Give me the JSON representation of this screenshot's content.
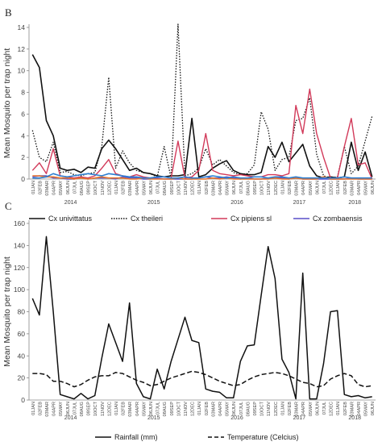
{
  "panels": [
    {
      "letter": "B"
    },
    {
      "letter": "C"
    }
  ],
  "colors": {
    "cx_univittatus": "#111111",
    "cx_theileri": "#111111",
    "cx_pipiens": "#d23a5a",
    "cx_zombaensis": "#5a4fc8",
    "orange_series": "#e8742a",
    "blue_series": "#2e7fd1",
    "rainfall": "#111111",
    "temperature": "#111111",
    "axis": "#888888"
  },
  "chart_data": [
    {
      "type": "line",
      "ylabel": "Mean Mosquito per trap night",
      "xlabel": "",
      "ylim": [
        0,
        14
      ],
      "yticks": [
        0,
        2,
        4,
        6,
        8,
        10,
        12,
        14
      ],
      "grid": false,
      "legend_position": "bottom",
      "categories": [
        "01JAN",
        "02FEB",
        "03MAR",
        "04APR",
        "05MAY",
        "06JUN",
        "07JUL",
        "08AUG",
        "09SEP",
        "10OCT",
        "11NOV",
        "12DEC",
        "01JAN",
        "02FEB",
        "03MAR",
        "04APR",
        "05MAY",
        "06JUN",
        "07JUL",
        "08AUG",
        "09SEP",
        "10OCT",
        "11NOV",
        "12DEC",
        "01JAN",
        "02FEB",
        "03MAR",
        "04APR",
        "05MAY",
        "06JUN",
        "07JUL",
        "08AUG",
        "09SEP",
        "10OCT",
        "11NOV",
        "12DEC",
        "01JAN",
        "02FEB",
        "03MAR",
        "04APR",
        "05MAY",
        "06JUN",
        "07JUL",
        "12DEC",
        "01JAN",
        "02FEB",
        "03MAR",
        "04APR",
        "05MAY",
        "06JUN"
      ],
      "year_labels": [
        {
          "label": "2014",
          "at_index": 5.5
        },
        {
          "label": "2015",
          "at_index": 17.5
        },
        {
          "label": "2016",
          "at_index": 29.5
        },
        {
          "label": "2017",
          "at_index": 38.5
        },
        {
          "label": "2018",
          "at_index": 46.5
        }
      ],
      "series": [
        {
          "name": "Cx univittatus",
          "style": "solid",
          "width": 1.6,
          "color_key": "cx_univittatus",
          "values": [
            11.5,
            10.3,
            5.4,
            4.0,
            1.0,
            0.8,
            0.9,
            0.6,
            1.1,
            1.0,
            2.8,
            3.6,
            2.8,
            1.8,
            0.8,
            1.0,
            0.6,
            0.5,
            0.3,
            0.2,
            0.3,
            0.3,
            0.4,
            5.6,
            0.2,
            0.4,
            1.0,
            1.4,
            1.7,
            0.8,
            0.5,
            0.4,
            0.4,
            0.6,
            3.0,
            2.0,
            3.4,
            1.6,
            2.4,
            3.2,
            1.2,
            0.3,
            0.1,
            0.2,
            0.1,
            0.2,
            3.4,
            0.8,
            2.5,
            0.2
          ]
        },
        {
          "name": "Cx theileri",
          "style": "dotted",
          "width": 1.3,
          "color_key": "cx_theileri",
          "values": [
            4.5,
            2.0,
            1.6,
            3.4,
            0.6,
            0.7,
            0.4,
            0.3,
            0.5,
            0.6,
            3.0,
            9.4,
            1.0,
            2.6,
            1.5,
            0.8,
            0.6,
            0.5,
            0.2,
            3.0,
            0.1,
            14.3,
            0.3,
            0.5,
            1.0,
            2.8,
            1.3,
            1.8,
            1.2,
            0.6,
            0.4,
            0.5,
            1.3,
            6.2,
            4.6,
            0.8,
            1.8,
            2.0,
            5.4,
            5.6,
            7.5,
            2.3,
            0.3,
            0.1,
            0.2,
            3.0,
            0.5,
            1.2,
            3.5,
            5.8
          ]
        },
        {
          "name": "Cx pipiens sl",
          "style": "solid",
          "width": 1.4,
          "color_key": "cx_pipiens",
          "values": [
            0.8,
            1.5,
            0.5,
            2.8,
            0.3,
            0.2,
            0.1,
            0.2,
            0.1,
            0.3,
            1.0,
            1.8,
            0.5,
            0.3,
            0.2,
            0.4,
            0.2,
            0.1,
            0.2,
            0.2,
            0.1,
            3.5,
            0.1,
            0.2,
            0.8,
            4.2,
            0.8,
            0.5,
            0.4,
            0.3,
            0.4,
            0.3,
            0.2,
            0.2,
            0.4,
            0.4,
            0.3,
            0.5,
            6.8,
            4.2,
            8.3,
            4.2,
            2.0,
            0.1,
            0.1,
            3.0,
            5.6,
            1.3,
            1.5,
            0.0
          ]
        },
        {
          "name": "Cx zombaensis",
          "style": "solid",
          "width": 1.4,
          "color_key": "cx_zombaensis",
          "values": [
            0.2,
            0.3,
            0.3,
            0.1,
            0.1,
            0.0,
            0.0,
            0.1,
            0.0,
            0.1,
            0.1,
            0.1,
            0.0,
            0.2,
            0.1,
            0.1,
            0.0,
            0.0,
            0.1,
            0.0,
            0.0,
            0.0,
            0.0,
            0.0,
            0.1,
            0.2,
            0.1,
            0.1,
            0.2,
            0.1,
            0.0,
            0.1,
            0.0,
            0.0,
            0.1,
            0.1,
            0.1,
            0.0,
            0.1,
            0.0,
            0.0,
            0.0,
            0.0,
            0.0,
            0.0,
            0.0,
            0.1,
            0.0,
            0.0,
            0.0
          ]
        },
        {
          "style": "solid",
          "width": 1.6,
          "color_key": "orange_series",
          "values": [
            0.3,
            0.3,
            0.2,
            0.2,
            0.1,
            0.1,
            0.0,
            0.1,
            0.0,
            0.1,
            0.2,
            0.1,
            0.1,
            0.1,
            0.0,
            0.0,
            0.1,
            0.0,
            0.0,
            0.0,
            0.0,
            0.1,
            0.0,
            0.0,
            0.0,
            0.0,
            0.1,
            0.0,
            0.1,
            0.0,
            0.0,
            0.0,
            0.0,
            0.0,
            0.0,
            0.1,
            0.0,
            0.0,
            0.1,
            0.0,
            0.0,
            0.0,
            0.2,
            0.0,
            0.0,
            0.0,
            0.0,
            0.0,
            0.0,
            0.0
          ]
        },
        {
          "style": "solid",
          "width": 1.6,
          "color_key": "blue_series",
          "values": [
            0.1,
            0.1,
            0.2,
            0.5,
            0.3,
            0.2,
            0.3,
            0.4,
            0.5,
            0.4,
            0.3,
            0.5,
            0.4,
            0.3,
            0.2,
            0.2,
            0.1,
            0.1,
            0.2,
            0.2,
            0.1,
            0.1,
            0.2,
            0.1,
            0.1,
            0.2,
            0.3,
            0.2,
            0.1,
            0.2,
            0.1,
            0.1,
            0.2,
            0.2,
            0.1,
            0.2,
            0.2,
            0.1,
            0.2,
            0.1,
            0.1,
            0.1,
            0.1,
            0.1,
            0.1,
            0.2,
            0.1,
            0.1,
            0.1,
            0.1
          ]
        }
      ],
      "legend": [
        {
          "label": "Cx univittatus",
          "style": "solid",
          "color_key": "cx_univittatus"
        },
        {
          "label": "Cx theileri",
          "style": "dotted",
          "color_key": "cx_theileri"
        },
        {
          "label": "Cx pipiens sl",
          "style": "solid",
          "color_key": "cx_pipiens"
        },
        {
          "label": "Cx zombaensis",
          "style": "solid",
          "color_key": "cx_zombaensis"
        }
      ]
    },
    {
      "type": "line",
      "ylabel": "Mean Mosquito per trap night",
      "xlabel": "",
      "ylim": [
        0,
        160
      ],
      "yticks": [
        0,
        20,
        40,
        60,
        80,
        100,
        120,
        140,
        160
      ],
      "grid": false,
      "legend_position": "bottom",
      "categories": [
        "01JAN",
        "02FEB",
        "03MAR",
        "04APR",
        "05MAY",
        "06JUN",
        "07JUL",
        "08AUG",
        "09SEP",
        "10OCT",
        "11NOV",
        "12DEC",
        "01JAN",
        "02FEB",
        "03MAR",
        "04APR",
        "05MAY",
        "06JUN",
        "07JUL",
        "08AUG",
        "09SEP",
        "10OCT",
        "11NOV",
        "12DEC",
        "01JAN",
        "02FEB",
        "03MAR",
        "04APR",
        "05MAY",
        "06JUN",
        "07JUL",
        "08AUG",
        "09SEP",
        "10OCT",
        "11NOV",
        "12DEC",
        "01JAN",
        "02FEB",
        "03MAR",
        "04APR",
        "05MAY",
        "06JUN",
        "07JUL",
        "12DEC",
        "01JAN",
        "02FEB",
        "03MAR",
        "04APR",
        "05MAY",
        "06JUN"
      ],
      "year_labels": [
        {
          "label": "2014",
          "at_index": 5.5
        },
        {
          "label": "2015",
          "at_index": 17.5
        },
        {
          "label": "2016",
          "at_index": 29.5
        },
        {
          "label": "2017",
          "at_index": 38.5
        },
        {
          "label": "2018",
          "at_index": 46.5
        }
      ],
      "series": [
        {
          "name": "Rainfall (mm)",
          "style": "solid",
          "width": 1.5,
          "color_key": "rainfall",
          "values": [
            92,
            77,
            148,
            80,
            5,
            3,
            1,
            6,
            1,
            4,
            38,
            69,
            52,
            35,
            88,
            15,
            3,
            1,
            28,
            10,
            35,
            55,
            75,
            54,
            52,
            10,
            8,
            7,
            2,
            2,
            35,
            49,
            50,
            95,
            139,
            110,
            37,
            25,
            1,
            115,
            1,
            1,
            33,
            80,
            81,
            5,
            3,
            4,
            2,
            3
          ]
        },
        {
          "name": "Temperature (Celcius)",
          "style": "dashed",
          "width": 1.5,
          "color_key": "temperature",
          "values": [
            24,
            24,
            23,
            17,
            17,
            15,
            12,
            14,
            18,
            21,
            22,
            22,
            25,
            24,
            21,
            18,
            16,
            13,
            14,
            17,
            20,
            22,
            24,
            26,
            25,
            23,
            20,
            17,
            15,
            13,
            14,
            18,
            21,
            23,
            24,
            25,
            24,
            22,
            19,
            16,
            15,
            12,
            13,
            19,
            22,
            24,
            22,
            14,
            12,
            13
          ]
        }
      ],
      "legend": [
        {
          "label": "Rainfall (mm)",
          "style": "solid",
          "color_key": "rainfall"
        },
        {
          "label": "Temperature (Celcius)",
          "style": "dashed",
          "color_key": "temperature"
        }
      ]
    }
  ]
}
